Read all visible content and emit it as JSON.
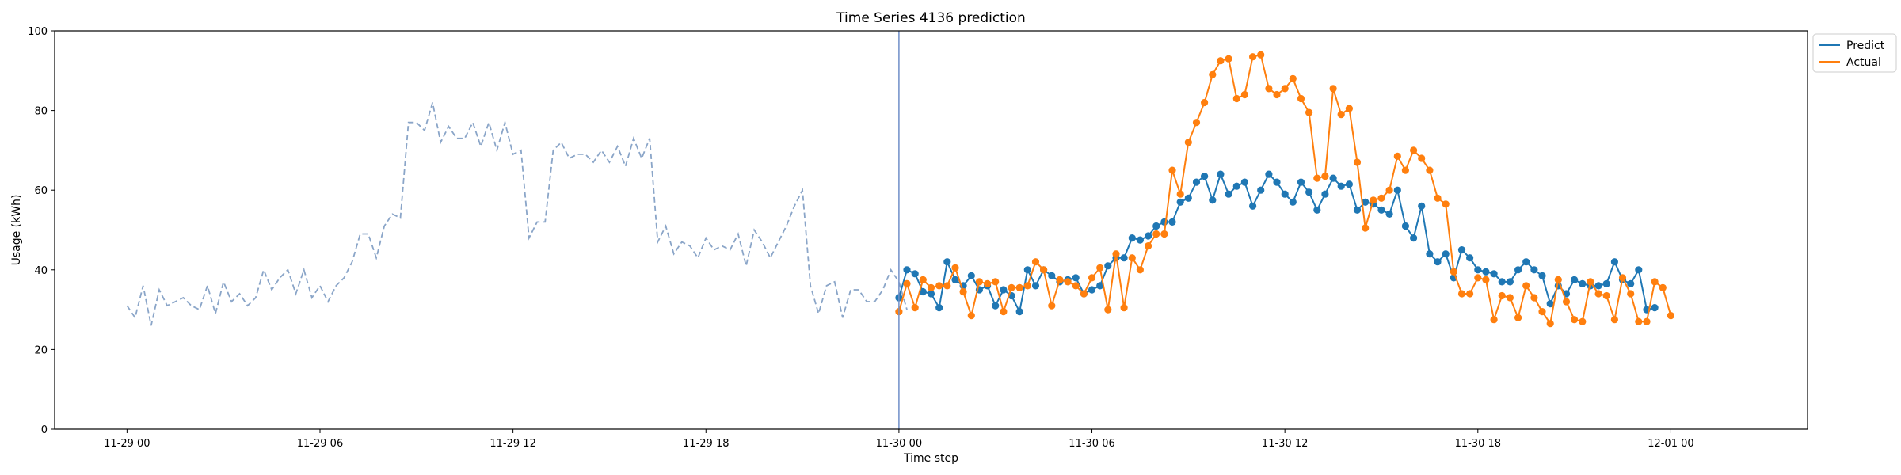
{
  "chart_data": {
    "type": "line",
    "title": "Time Series 4136 prediction",
    "xlabel": "Time step",
    "ylabel": "Usage (kWh)",
    "ylim": [
      0,
      100
    ],
    "yticks": [
      0,
      20,
      40,
      60,
      80,
      100
    ],
    "xlim_hours": [
      -2.25,
      52.25
    ],
    "xticks": [
      {
        "label": "11-29 00",
        "hour": 0
      },
      {
        "label": "11-29 06",
        "hour": 6
      },
      {
        "label": "11-29 12",
        "hour": 12
      },
      {
        "label": "11-29 18",
        "hour": 18
      },
      {
        "label": "11-30 00",
        "hour": 24
      },
      {
        "label": "11-30 06",
        "hour": 30
      },
      {
        "label": "11-30 12",
        "hour": 36
      },
      {
        "label": "11-30 18",
        "hour": 42
      },
      {
        "label": "12-01 00",
        "hour": 48
      }
    ],
    "vline_hour": 24,
    "grid": false,
    "legend_position": "outside-top-right",
    "step_hours": 0.25,
    "history": {
      "start_hour": 0,
      "color": "#8aa5c8",
      "style": "dashed",
      "values": [
        31,
        28,
        36,
        26,
        35,
        31,
        32,
        33,
        31,
        30,
        36,
        29,
        37,
        32,
        34,
        31,
        33,
        40,
        35,
        38,
        40,
        34,
        40,
        33,
        36,
        32,
        36,
        38,
        42,
        49,
        49,
        43,
        51,
        54,
        53,
        77,
        77,
        75,
        82,
        72,
        76,
        73,
        73,
        77,
        71,
        77,
        70,
        77,
        69,
        70,
        48,
        52,
        52,
        70,
        72,
        68,
        69,
        69,
        67,
        70,
        67,
        71,
        66,
        73,
        68,
        73,
        47,
        51,
        44,
        47,
        46,
        43,
        48,
        45,
        46,
        45,
        49,
        41,
        50,
        47,
        43,
        47,
        51,
        56,
        60,
        36,
        29,
        36,
        37,
        28,
        35,
        35,
        32,
        32,
        35,
        40,
        37,
        30
      ]
    },
    "series": [
      {
        "name": "Predict",
        "color": "#1f77b4",
        "start_hour": 24,
        "values": [
          33,
          40,
          39,
          34.5,
          34,
          30.5,
          42,
          37.5,
          36,
          38.5,
          35,
          36,
          31,
          35,
          33.5,
          29.5,
          40,
          36,
          40,
          38.5,
          37,
          37.5,
          38,
          34,
          35,
          36,
          41,
          43,
          43,
          48,
          47.5,
          48.5,
          51,
          52,
          52,
          57,
          58,
          62,
          63.5,
          57.5,
          64,
          59,
          61,
          62,
          56,
          60,
          64,
          62,
          59,
          57,
          62,
          59.5,
          55,
          59,
          63,
          61,
          61.5,
          55,
          57,
          56.5,
          55,
          54,
          60,
          51,
          48,
          56,
          44,
          42,
          44,
          38,
          45,
          43,
          40,
          39.5,
          39,
          37,
          37,
          40,
          42,
          40,
          38.5,
          31.5,
          36,
          34,
          37.5,
          36.5,
          36,
          36,
          36.5,
          42,
          37.5,
          36.5,
          40,
          30,
          30.5
        ]
      },
      {
        "name": "Actual",
        "color": "#ff7f0e",
        "start_hour": 24,
        "values": [
          29.5,
          36.5,
          30.5,
          37.5,
          35.5,
          36,
          36,
          40.5,
          34.5,
          28.5,
          37,
          36.5,
          37,
          29.5,
          35.5,
          35.5,
          36,
          42,
          40,
          31,
          37.5,
          37,
          36,
          34,
          38,
          40.5,
          30,
          44,
          30.5,
          43,
          40,
          46,
          49,
          49,
          65,
          59,
          72,
          77,
          82,
          89,
          92.5,
          93,
          83,
          84,
          93.5,
          94,
          85.5,
          84,
          85.5,
          88,
          83,
          79.5,
          63,
          63.5,
          85.5,
          79,
          80.5,
          67,
          50.5,
          57.5,
          58,
          60,
          68.5,
          65,
          70,
          68,
          65,
          58,
          56.5,
          39.5,
          34,
          34,
          38,
          37.5,
          27.5,
          33.5,
          33,
          28,
          36,
          33,
          29.5,
          26.5,
          37.5,
          32,
          27.5,
          27,
          37,
          34,
          33.5,
          27.5,
          38,
          34,
          27,
          27,
          37,
          35.5,
          28.5
        ]
      }
    ]
  }
}
